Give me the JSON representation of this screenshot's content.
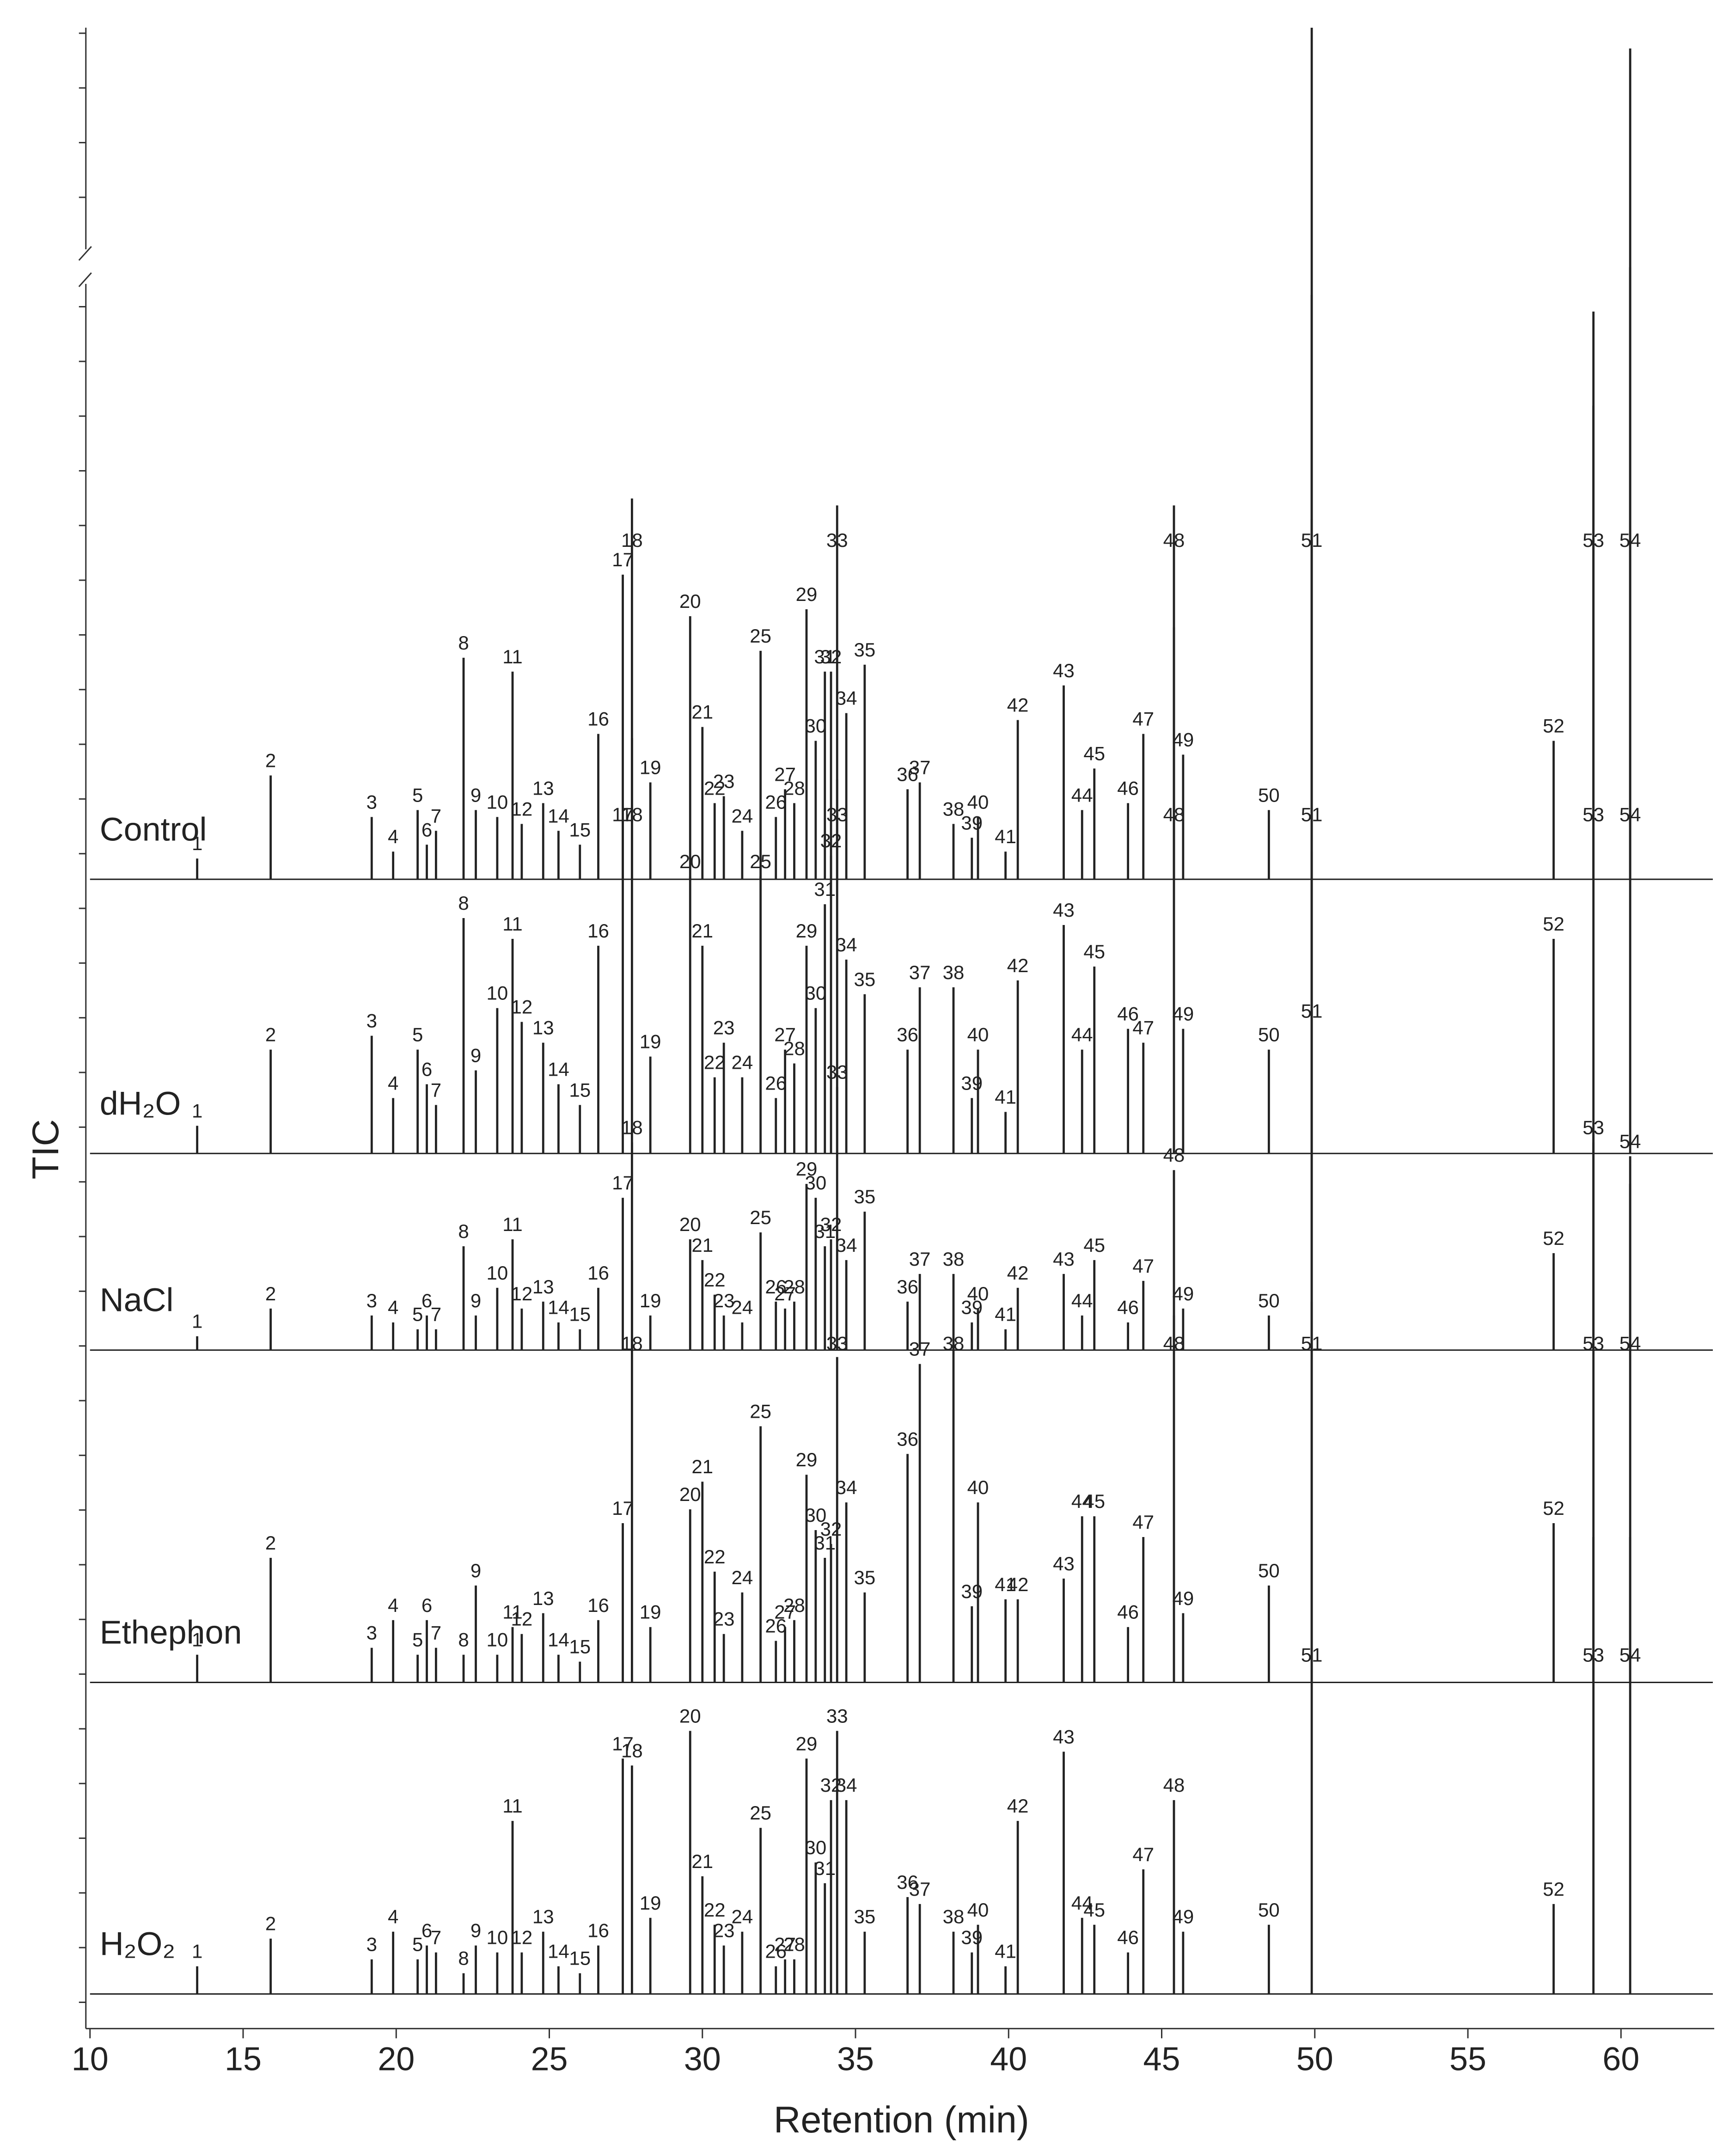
{
  "chart_data": {
    "type": "chromatogram",
    "x_label": "Retention (min)",
    "y_label": "TIC",
    "xlim": [
      10,
      63
    ],
    "xticks": [
      10,
      15,
      20,
      25,
      30,
      35,
      40,
      45,
      50,
      55,
      60
    ],
    "peak_labels": [
      "1",
      "2",
      "3",
      "4",
      "5",
      "6",
      "7",
      "8",
      "9",
      "10",
      "11",
      "12",
      "13",
      "14",
      "15",
      "16",
      "17",
      "18",
      "19",
      "20",
      "21",
      "22",
      "23",
      "24",
      "25",
      "26",
      "27",
      "28",
      "29",
      "30",
      "31",
      "32",
      "33",
      "34",
      "35",
      "36",
      "37",
      "38",
      "39",
      "40",
      "41",
      "42",
      "43",
      "44",
      "45",
      "46",
      "47",
      "48",
      "49",
      "50",
      "51",
      "52",
      "53",
      "54"
    ],
    "x": [
      13.5,
      15.9,
      19.2,
      19.9,
      20.7,
      21.0,
      21.3,
      22.2,
      22.6,
      23.3,
      23.8,
      24.1,
      24.8,
      25.3,
      26.0,
      26.6,
      27.4,
      27.7,
      28.3,
      29.6,
      30.0,
      30.4,
      30.7,
      31.3,
      31.9,
      32.4,
      32.7,
      33.0,
      33.4,
      33.7,
      34.0,
      34.2,
      34.4,
      34.7,
      35.3,
      36.7,
      37.1,
      38.2,
      38.8,
      39.0,
      39.9,
      40.3,
      41.8,
      42.4,
      42.8,
      43.9,
      44.4,
      45.4,
      45.7,
      48.5,
      49.9,
      57.8,
      59.1,
      60.3
    ],
    "series": [
      {
        "name": "Control",
        "color": "#222222",
        "values": [
          15,
          75,
          45,
          20,
          50,
          25,
          35,
          160,
          50,
          45,
          150,
          40,
          55,
          35,
          25,
          105,
          220,
          275,
          70,
          190,
          110,
          55,
          60,
          35,
          165,
          45,
          65,
          55,
          195,
          100,
          150,
          150,
          270,
          120,
          155,
          65,
          70,
          40,
          30,
          45,
          20,
          115,
          140,
          50,
          80,
          55,
          105,
          270,
          90,
          50,
          615,
          100,
          410,
          600
        ]
      },
      {
        "name": "dH₂O",
        "color": "#222222",
        "values": [
          20,
          75,
          85,
          40,
          75,
          50,
          35,
          170,
          60,
          105,
          155,
          95,
          80,
          50,
          35,
          150,
          240,
          300,
          70,
          200,
          150,
          55,
          80,
          55,
          200,
          40,
          75,
          65,
          150,
          105,
          180,
          215,
          270,
          140,
          115,
          75,
          120,
          120,
          40,
          75,
          30,
          125,
          165,
          75,
          135,
          90,
          80,
          380,
          90,
          75,
          620,
          155,
          540,
          640
        ]
      },
      {
        "name": "NaCl",
        "color": "#222222",
        "values": [
          10,
          30,
          25,
          20,
          15,
          25,
          15,
          75,
          25,
          45,
          80,
          30,
          35,
          20,
          15,
          45,
          110,
          150,
          25,
          80,
          65,
          40,
          25,
          20,
          85,
          35,
          30,
          35,
          120,
          110,
          75,
          80,
          190,
          65,
          100,
          35,
          55,
          55,
          20,
          30,
          15,
          45,
          55,
          25,
          65,
          20,
          50,
          130,
          30,
          25,
          600,
          70,
          150,
          140
        ]
      },
      {
        "name": "Ethephon",
        "color": "#222222",
        "values": [
          20,
          90,
          25,
          45,
          20,
          45,
          25,
          20,
          70,
          20,
          40,
          35,
          50,
          20,
          15,
          45,
          115,
          305,
          40,
          125,
          145,
          80,
          35,
          65,
          185,
          30,
          40,
          45,
          150,
          110,
          90,
          100,
          235,
          130,
          65,
          165,
          230,
          240,
          55,
          130,
          60,
          60,
          75,
          120,
          120,
          40,
          105,
          265,
          50,
          70,
          600,
          115,
          400,
          360
        ]
      },
      {
        "name": "H₂O₂",
        "color": "#222222",
        "values": [
          20,
          40,
          25,
          45,
          25,
          35,
          30,
          15,
          35,
          30,
          125,
          30,
          45,
          20,
          15,
          35,
          170,
          165,
          55,
          190,
          85,
          50,
          35,
          45,
          120,
          20,
          25,
          25,
          170,
          95,
          80,
          140,
          190,
          140,
          45,
          70,
          65,
          45,
          30,
          50,
          20,
          125,
          175,
          55,
          50,
          30,
          90,
          140,
          45,
          50,
          500,
          65,
          330,
          330
        ]
      }
    ]
  }
}
